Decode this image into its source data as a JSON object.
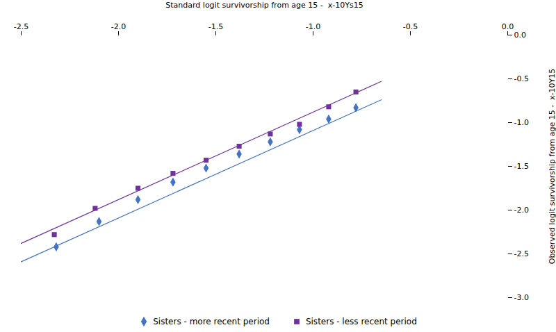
{
  "chart_data": {
    "type": "scatter",
    "x_label": "Standard logit survivorship from age 15 -  x-10Ys15",
    "y_label": "Observed logit survivorship from age 15 -  x-10Y15",
    "xlim": [
      -2.5,
      0.0
    ],
    "ylim": [
      -3.0,
      0.0
    ],
    "xticks": [
      -2.5,
      {
        "value": -2.0,
        "label": "-2.0"
      },
      -1.5,
      {
        "value": -1.0,
        "label": "-1.0"
      },
      -0.5,
      {
        "value": 0.0,
        "label": "0.0"
      }
    ],
    "yticks": [
      {
        "value": 0.0,
        "label": "0.0"
      },
      -0.5,
      {
        "value": -1.0,
        "label": "-1.0"
      },
      -1.5,
      {
        "value": -2.0,
        "label": "-2.0"
      },
      -2.5,
      {
        "value": -3.0,
        "label": "-3.0"
      }
    ],
    "grid": false,
    "legend": "bottom",
    "series": [
      {
        "name": "Sisters  - more recent period",
        "color": "#4472c4",
        "marker": "diamond",
        "x": [
          -2.32,
          -2.1,
          -1.9,
          -1.72,
          -1.55,
          -1.38,
          -1.22,
          -1.07,
          -0.92,
          -0.78
        ],
        "values": [
          -2.42,
          -2.13,
          -1.88,
          -1.68,
          -1.52,
          -1.36,
          -1.22,
          -1.08,
          -0.96,
          -0.83
        ]
      },
      {
        "name": "Sisters - less recent period",
        "color": "#7030a0",
        "marker": "square",
        "x": [
          -2.33,
          -2.12,
          -1.9,
          -1.72,
          -1.55,
          -1.38,
          -1.22,
          -1.07,
          -0.92,
          -0.78
        ],
        "values": [
          -2.28,
          -1.98,
          -1.75,
          -1.58,
          -1.43,
          -1.27,
          -1.13,
          -1.02,
          -0.82,
          -0.65
        ]
      },
      {
        "type": "line",
        "color": "#4472c4",
        "x": [
          -2.5,
          -0.65
        ],
        "values": [
          -2.59,
          -0.74
        ]
      },
      {
        "type": "line",
        "color": "#7030a0",
        "x": [
          -2.5,
          -0.65
        ],
        "values": [
          -2.38,
          -0.53
        ]
      }
    ]
  }
}
